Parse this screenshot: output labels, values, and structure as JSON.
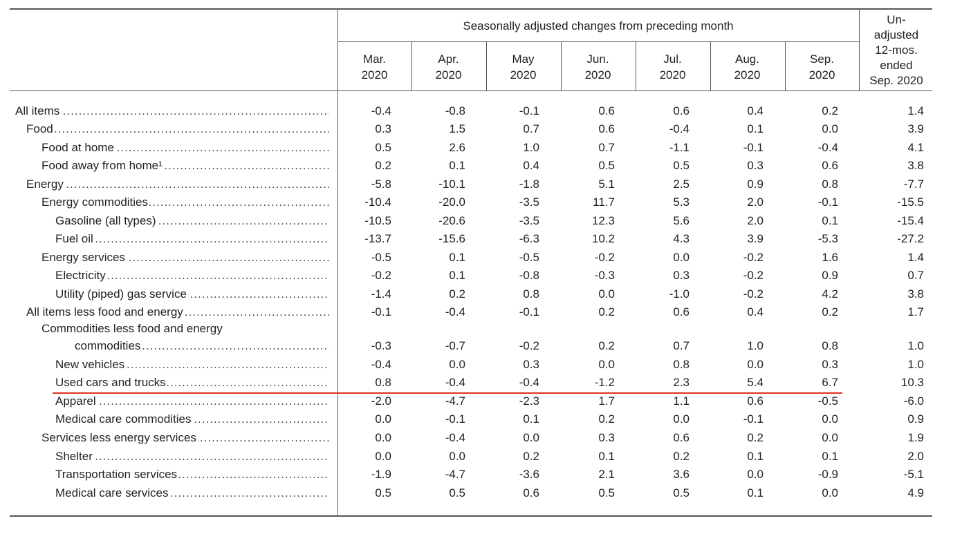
{
  "header": {
    "span_title": "Seasonally adjusted changes from preceding month",
    "unadjusted": [
      "Un-",
      "adjusted",
      "12-mos.",
      "ended",
      "Sep. 2020"
    ],
    "columns": [
      {
        "month": "Mar.",
        "year": "2020"
      },
      {
        "month": "Apr.",
        "year": "2020"
      },
      {
        "month": "May",
        "year": "2020"
      },
      {
        "month": "Jun.",
        "year": "2020"
      },
      {
        "month": "Jul.",
        "year": "2020"
      },
      {
        "month": "Aug.",
        "year": "2020"
      },
      {
        "month": "Sep.",
        "year": "2020"
      }
    ]
  },
  "rows": [
    {
      "label": "All items",
      "indent": 0,
      "values": [
        "-0.4",
        "-0.8",
        "-0.1",
        "0.6",
        "0.6",
        "0.4",
        "0.2",
        "1.4"
      ]
    },
    {
      "label": "Food",
      "indent": 1,
      "values": [
        "0.3",
        "1.5",
        "0.7",
        "0.6",
        "-0.4",
        "0.1",
        "0.0",
        "3.9"
      ]
    },
    {
      "label": "Food at home",
      "indent": 2,
      "values": [
        "0.5",
        "2.6",
        "1.0",
        "0.7",
        "-1.1",
        "-0.1",
        "-0.4",
        "4.1"
      ]
    },
    {
      "label": "Food away from home¹",
      "indent": 2,
      "values": [
        "0.2",
        "0.1",
        "0.4",
        "0.5",
        "0.5",
        "0.3",
        "0.6",
        "3.8"
      ]
    },
    {
      "label": "Energy",
      "indent": 1,
      "values": [
        "-5.8",
        "-10.1",
        "-1.8",
        "5.1",
        "2.5",
        "0.9",
        "0.8",
        "-7.7"
      ]
    },
    {
      "label": "Energy commodities",
      "indent": 2,
      "values": [
        "-10.4",
        "-20.0",
        "-3.5",
        "11.7",
        "5.3",
        "2.0",
        "-0.1",
        "-15.5"
      ]
    },
    {
      "label": "Gasoline (all types)",
      "indent": 3,
      "values": [
        "-10.5",
        "-20.6",
        "-3.5",
        "12.3",
        "5.6",
        "2.0",
        "0.1",
        "-15.4"
      ]
    },
    {
      "label": "Fuel oil",
      "indent": 3,
      "values": [
        "-13.7",
        "-15.6",
        "-6.3",
        "10.2",
        "4.3",
        "3.9",
        "-5.3",
        "-27.2"
      ]
    },
    {
      "label": "Energy services",
      "indent": 2,
      "values": [
        "-0.5",
        "0.1",
        "-0.5",
        "-0.2",
        "0.0",
        "-0.2",
        "1.6",
        "1.4"
      ]
    },
    {
      "label": "Electricity",
      "indent": 3,
      "values": [
        "-0.2",
        "0.1",
        "-0.8",
        "-0.3",
        "0.3",
        "-0.2",
        "0.9",
        "0.7"
      ]
    },
    {
      "label": "Utility (piped) gas service",
      "indent": 3,
      "values": [
        "-1.4",
        "0.2",
        "0.8",
        "0.0",
        "-1.0",
        "-0.2",
        "4.2",
        "3.8"
      ]
    },
    {
      "label": "All items less food and energy",
      "indent": 1,
      "values": [
        "-0.1",
        "-0.4",
        "-0.1",
        "0.2",
        "0.6",
        "0.4",
        "0.2",
        "1.7"
      ]
    },
    {
      "label": "Commodities less food and energy",
      "label2": "commodities",
      "indent": 2,
      "values": [
        "-0.3",
        "-0.7",
        "-0.2",
        "0.2",
        "0.7",
        "1.0",
        "0.8",
        "1.0"
      ]
    },
    {
      "label": "New vehicles",
      "indent": 3,
      "values": [
        "-0.4",
        "0.0",
        "0.3",
        "0.0",
        "0.8",
        "0.0",
        "0.3",
        "1.0"
      ]
    },
    {
      "label": "Used cars and trucks",
      "indent": 3,
      "values": [
        "0.8",
        "-0.4",
        "-0.4",
        "-1.2",
        "2.3",
        "5.4",
        "6.7",
        "10.3"
      ]
    },
    {
      "label": "Apparel",
      "indent": 3,
      "values": [
        "-2.0",
        "-4.7",
        "-2.3",
        "1.7",
        "1.1",
        "0.6",
        "-0.5",
        "-6.0"
      ]
    },
    {
      "label": "Medical care commodities",
      "indent": 3,
      "values": [
        "0.0",
        "-0.1",
        "0.1",
        "0.2",
        "0.0",
        "-0.1",
        "0.0",
        "0.9"
      ]
    },
    {
      "label": "Services less energy services",
      "indent": 2,
      "values": [
        "0.0",
        "-0.4",
        "0.0",
        "0.3",
        "0.6",
        "0.2",
        "0.0",
        "1.9"
      ]
    },
    {
      "label": "Shelter",
      "indent": 3,
      "values": [
        "0.0",
        "0.0",
        "0.2",
        "0.1",
        "0.2",
        "0.1",
        "0.1",
        "2.0"
      ]
    },
    {
      "label": "Transportation services",
      "indent": 3,
      "values": [
        "-1.9",
        "-4.7",
        "-3.6",
        "2.1",
        "3.6",
        "0.0",
        "-0.9",
        "-5.1"
      ]
    },
    {
      "label": "Medical care services",
      "indent": 3,
      "values": [
        "0.5",
        "0.5",
        "0.6",
        "0.5",
        "0.5",
        "0.1",
        "0.0",
        "4.9"
      ]
    }
  ],
  "colors": {
    "rule": "#555555",
    "highlight_line": "#e0301e"
  }
}
